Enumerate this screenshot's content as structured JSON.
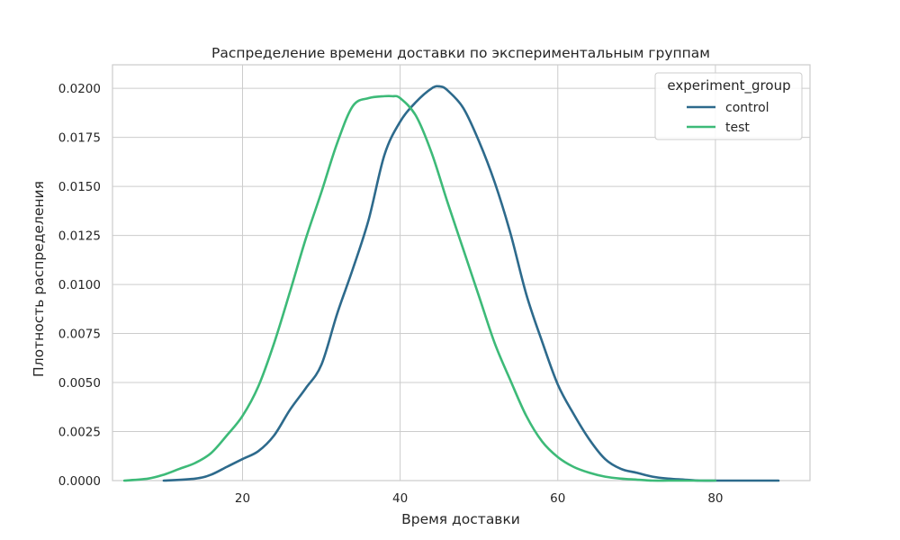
{
  "chart_data": {
    "type": "line",
    "title": "Распределение времени доставки по экспериментальным группам",
    "xlabel": "Время доставки",
    "ylabel": "Плотность распределения",
    "xlim": [
      3.5,
      92
    ],
    "ylim": [
      0,
      0.0212
    ],
    "xticks": [
      20,
      40,
      60,
      80
    ],
    "xtick_labels": [
      "20",
      "40",
      "60",
      "80"
    ],
    "yticks": [
      0,
      0.0025,
      0.005,
      0.0075,
      0.01,
      0.0125,
      0.015,
      0.0175,
      0.02
    ],
    "ytick_labels": [
      "0.0000",
      "0.0025",
      "0.0050",
      "0.0075",
      "0.0100",
      "0.0125",
      "0.0150",
      "0.0175",
      "0.0200"
    ],
    "grid": true,
    "legend": {
      "title": "experiment_group",
      "placement": "top-right"
    },
    "series": [
      {
        "name": "control",
        "color": "#2d6a8c",
        "x": [
          10,
          14,
          16,
          18,
          20,
          22,
          24,
          26,
          28,
          30,
          32,
          34,
          36,
          38,
          40,
          42,
          44,
          45,
          46,
          48,
          50,
          52,
          54,
          56,
          58,
          60,
          62,
          64,
          66,
          68,
          70,
          72,
          74,
          76,
          78,
          80,
          82,
          84,
          86,
          88
        ],
        "y": [
          0.0,
          0.0001,
          0.0003,
          0.0007,
          0.0011,
          0.0015,
          0.0023,
          0.0036,
          0.0047,
          0.0059,
          0.0085,
          0.0108,
          0.0133,
          0.0166,
          0.0183,
          0.0193,
          0.02,
          0.0201,
          0.0199,
          0.019,
          0.0173,
          0.0152,
          0.0126,
          0.0095,
          0.0071,
          0.0049,
          0.0034,
          0.0021,
          0.0011,
          0.0006,
          0.0004,
          0.0002,
          0.0001,
          5e-05,
          0.0,
          0.0,
          0.0,
          0.0,
          0.0,
          0.0
        ]
      },
      {
        "name": "test",
        "color": "#3dba78",
        "x": [
          5,
          8,
          10,
          12,
          14,
          16,
          18,
          20,
          22,
          24,
          26,
          28,
          30,
          32,
          34,
          36,
          38,
          39,
          40,
          42,
          44,
          46,
          48,
          50,
          52,
          54,
          56,
          58,
          60,
          62,
          64,
          66,
          68,
          70,
          72,
          74,
          76,
          78,
          80
        ],
        "y": [
          0.0,
          0.0001,
          0.0003,
          0.0006,
          0.0009,
          0.0014,
          0.0023,
          0.0033,
          0.0048,
          0.007,
          0.0096,
          0.0123,
          0.0147,
          0.0172,
          0.0191,
          0.0195,
          0.0196,
          0.0196,
          0.0195,
          0.0186,
          0.0167,
          0.0142,
          0.0118,
          0.0094,
          0.007,
          0.0051,
          0.0033,
          0.002,
          0.0012,
          0.0007,
          0.0004,
          0.0002,
          0.0001,
          5e-05,
          0.0,
          0.0,
          0.0,
          0.0,
          0.0
        ]
      }
    ]
  }
}
